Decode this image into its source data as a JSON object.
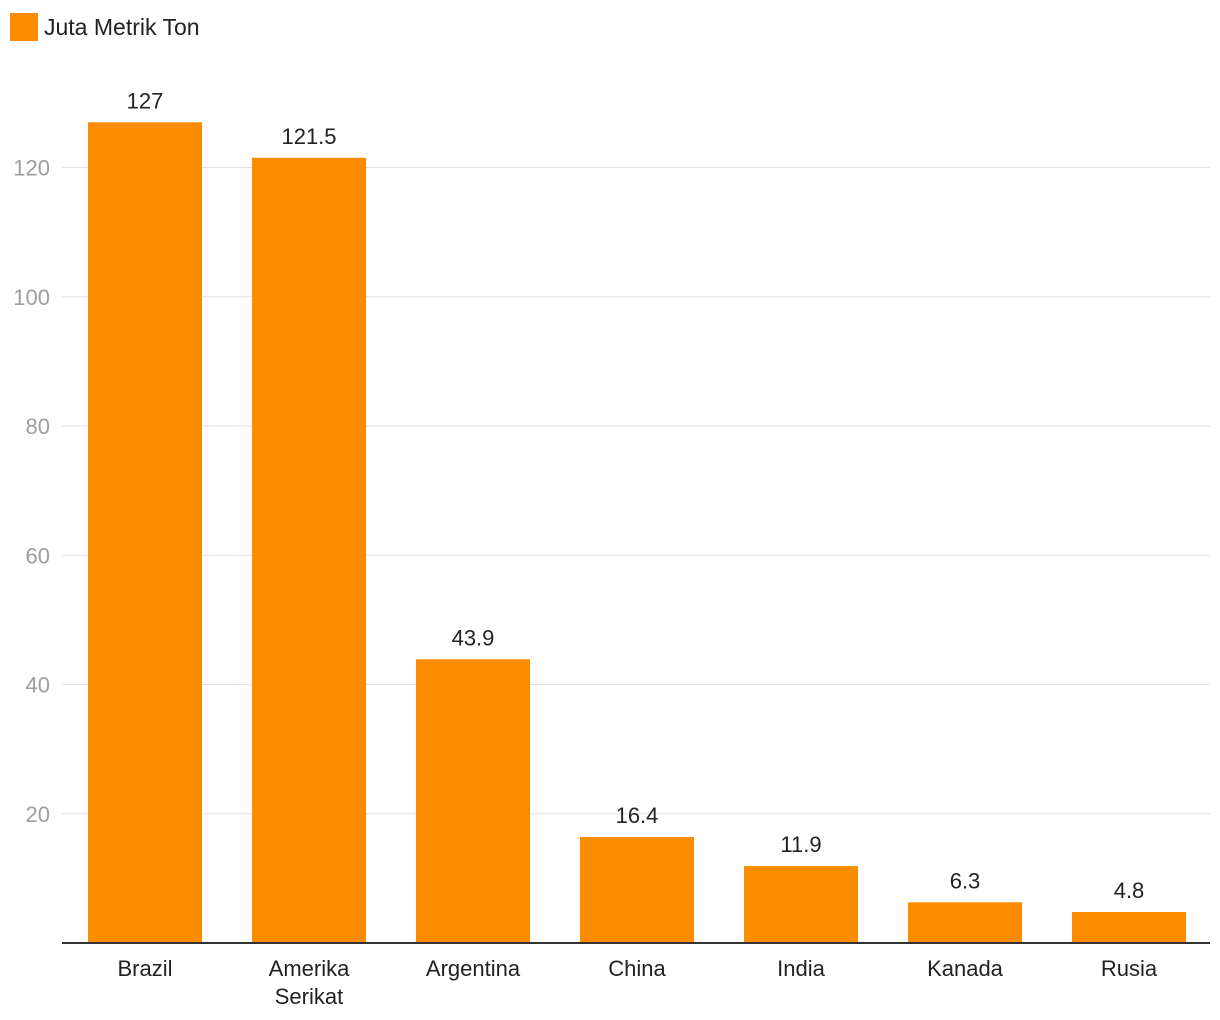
{
  "chart_data": {
    "type": "bar",
    "categories": [
      "Brazil",
      "Amerika Serikat",
      "Argentina",
      "China",
      "India",
      "Kanada",
      "Rusia"
    ],
    "category_lines": [
      [
        "Brazil"
      ],
      [
        "Amerika",
        "Serikat"
      ],
      [
        "Argentina"
      ],
      [
        "China"
      ],
      [
        "India"
      ],
      [
        "Kanada"
      ],
      [
        "Rusia"
      ]
    ],
    "series": [
      {
        "name": "Juta Metrik Ton",
        "values": [
          127,
          121.5,
          43.9,
          16.4,
          11.9,
          6.3,
          4.8
        ],
        "value_labels": [
          "127",
          "121.5",
          "43.9",
          "16.4",
          "11.9",
          "6.3",
          "4.8"
        ],
        "color": "#fb8c00"
      }
    ],
    "yticks": [
      20,
      40,
      60,
      80,
      100,
      120
    ],
    "ylim": [
      0,
      140
    ],
    "grid": true,
    "legend_position": "top-left",
    "title": "",
    "xlabel": "",
    "ylabel": ""
  },
  "colors": {
    "bar": "#fb8c00",
    "grid": "#e0e0e0",
    "axis": "#333333",
    "tick_text": "#9e9e9e",
    "text": "#222222"
  }
}
